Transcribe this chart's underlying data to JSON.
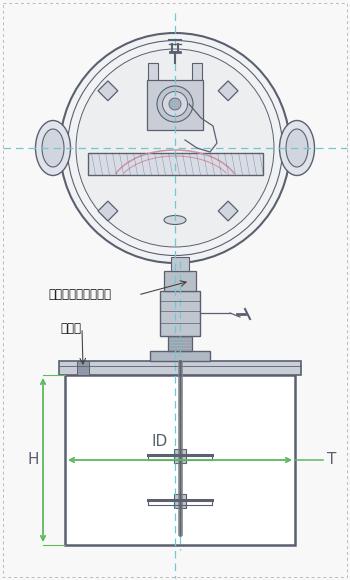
{
  "bg_color": "#f8f8f8",
  "line_color": "#5a6070",
  "centerline_color": "#70c8d0",
  "dim_color": "#60b860",
  "pink_color": "#d090a8",
  "label_denki": "電動モーター撹拌機",
  "label_kaihei": "開閉蓋",
  "label_H": "H",
  "label_ID": "ID",
  "label_T": "T",
  "fig_w": 3.5,
  "fig_h": 5.8,
  "dpi": 100
}
